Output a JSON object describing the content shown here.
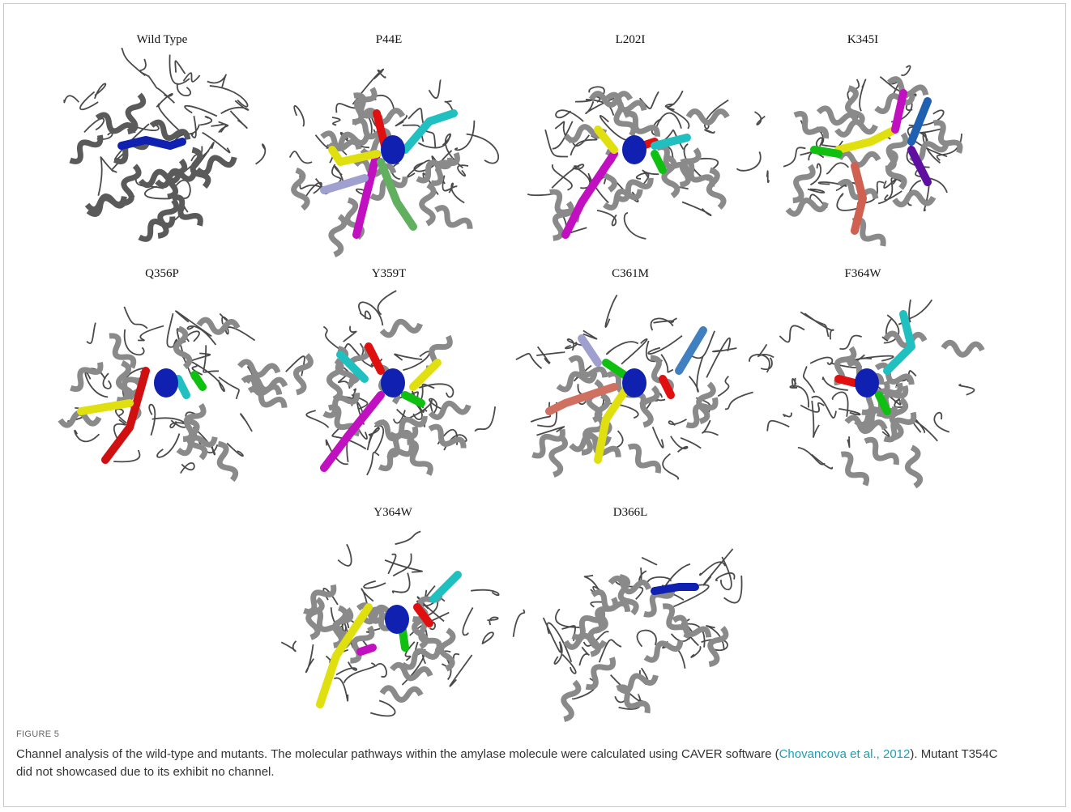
{
  "figure": {
    "panels": [
      {
        "label": "Wild Type"
      },
      {
        "label": "P44E"
      },
      {
        "label": "L202I"
      },
      {
        "label": "K345I"
      },
      {
        "label": "Q356P"
      },
      {
        "label": "Y359T"
      },
      {
        "label": "C361M"
      },
      {
        "label": "F364W"
      },
      {
        "label": "Y364W"
      },
      {
        "label": "D366L"
      }
    ],
    "label": "FIGURE 5",
    "caption": {
      "before": "Channel analysis of the wild-type and mutants. The molecular pathways within the amylase molecule were calculated using CAVER software (",
      "citation": "Chovancova et al., 2012",
      "after": "). Mutant T354C did not showcased due to its exhibit no channel."
    }
  }
}
